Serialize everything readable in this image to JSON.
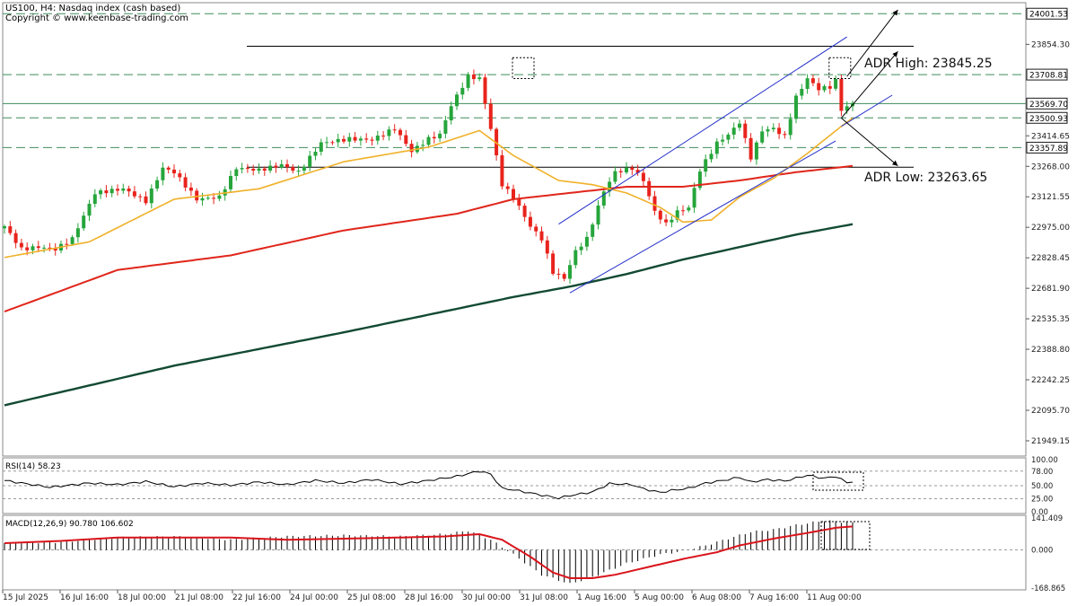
{
  "header": {
    "symbol_line": "US100, H4:  Nasdaq index (cash based)",
    "copyright": "Copyright © www.keenbase-trading.com"
  },
  "colors": {
    "bull": "#26a53b",
    "bear": "#e8231c",
    "ema20": "#f0b12a",
    "ema100": "#e0261b",
    "ema200": "#124a33",
    "channel": "#2431c9",
    "hline": "#3e8c5a",
    "axis_box": "#1a1a1a"
  },
  "price_axis": {
    "labels": [
      "23854.30",
      "23414.65",
      "23268.00",
      "23121.55",
      "22975.00",
      "22828.45",
      "22681.90",
      "22535.35",
      "22388.80",
      "22242.25",
      "22095.70",
      "21949.15"
    ],
    "boxed": [
      {
        "text": "24001.53",
        "value": 24001.53
      },
      {
        "text": "23708.81",
        "value": 23708.81
      },
      {
        "text": "23569.70",
        "value": 23569.7
      },
      {
        "text": "23500.93",
        "value": 23500.93
      },
      {
        "text": "23357.89",
        "value": 23357.89
      }
    ]
  },
  "annotations": {
    "adr_high": "ADR High: 23845.25",
    "adr_low": "ADR Low: 23263.65"
  },
  "time_axis": [
    "15 Jul 2025",
    "16 Jul 16:00",
    "18 Jul 00:00",
    "21 Jul 08:00",
    "22 Jul 16:00",
    "24 Jul 00:00",
    "25 Jul 08:00",
    "28 Jul 16:00",
    "30 Jul 00:00",
    "31 Jul 08:00",
    "1 Aug 16:00",
    "5 Aug 00:00",
    "6 Aug 08:00",
    "7 Aug 16:00",
    "11 Aug 00:00"
  ],
  "rsi": {
    "title": "RSI(14) 58.23",
    "axis": [
      "100.00",
      "78.00",
      "50.00",
      "25.00",
      "0.00"
    ]
  },
  "macd": {
    "title": "MACD(12,26,9) 90.780 106.602",
    "axis": [
      "141.409",
      "0.000",
      "-168.865"
    ]
  },
  "chart_data": {
    "type": "candlestick",
    "symbol": "US100",
    "timeframe": "H4",
    "y_range": [
      21880,
      24050
    ],
    "horizontal_levels": [
      24001.53,
      23845.25,
      23708.81,
      23569.7,
      23500.93,
      23357.89,
      23263.65
    ],
    "anchors": [
      {
        "i": 0,
        "p": 22980
      },
      {
        "i": 3,
        "p": 22870
      },
      {
        "i": 6,
        "p": 22880
      },
      {
        "i": 9,
        "p": 22870
      },
      {
        "i": 12,
        "p": 22920
      },
      {
        "i": 16,
        "p": 23140
      },
      {
        "i": 21,
        "p": 23160
      },
      {
        "i": 25,
        "p": 23100
      },
      {
        "i": 28,
        "p": 23260
      },
      {
        "i": 30,
        "p": 23240
      },
      {
        "i": 34,
        "p": 23110
      },
      {
        "i": 38,
        "p": 23120
      },
      {
        "i": 41,
        "p": 23260
      },
      {
        "i": 45,
        "p": 23250
      },
      {
        "i": 49,
        "p": 23275
      },
      {
        "i": 52,
        "p": 23240
      },
      {
        "i": 56,
        "p": 23380
      },
      {
        "i": 61,
        "p": 23400
      },
      {
        "i": 65,
        "p": 23395
      },
      {
        "i": 69,
        "p": 23450
      },
      {
        "i": 72,
        "p": 23340
      },
      {
        "i": 75,
        "p": 23400
      },
      {
        "i": 77,
        "p": 23420
      },
      {
        "i": 79,
        "p": 23560
      },
      {
        "i": 82,
        "p": 23700
      },
      {
        "i": 84,
        "p": 23690
      },
      {
        "i": 86,
        "p": 23450
      },
      {
        "i": 88,
        "p": 23180
      },
      {
        "i": 90,
        "p": 23120
      },
      {
        "i": 93,
        "p": 22980
      },
      {
        "i": 95,
        "p": 22920
      },
      {
        "i": 97,
        "p": 22760
      },
      {
        "i": 99,
        "p": 22730
      },
      {
        "i": 101,
        "p": 22860
      },
      {
        "i": 103,
        "p": 22920
      },
      {
        "i": 106,
        "p": 23150
      },
      {
        "i": 108,
        "p": 23240
      },
      {
        "i": 111,
        "p": 23260
      },
      {
        "i": 113,
        "p": 23200
      },
      {
        "i": 115,
        "p": 23050
      },
      {
        "i": 117,
        "p": 22990
      },
      {
        "i": 119,
        "p": 23050
      },
      {
        "i": 121,
        "p": 23070
      },
      {
        "i": 123,
        "p": 23250
      },
      {
        "i": 126,
        "p": 23380
      },
      {
        "i": 128,
        "p": 23420
      },
      {
        "i": 130,
        "p": 23480
      },
      {
        "i": 132,
        "p": 23310
      },
      {
        "i": 134,
        "p": 23440
      },
      {
        "i": 136,
        "p": 23450
      },
      {
        "i": 138,
        "p": 23410
      },
      {
        "i": 140,
        "p": 23600
      },
      {
        "i": 142,
        "p": 23690
      },
      {
        "i": 144,
        "p": 23640
      },
      {
        "i": 146,
        "p": 23650
      },
      {
        "i": 147,
        "p": 23680
      },
      {
        "i": 148,
        "p": 23540
      },
      {
        "i": 149,
        "p": 23555
      },
      {
        "i": 150,
        "p": 23570
      }
    ],
    "ema20": [
      [
        0,
        22830
      ],
      [
        15,
        22905
      ],
      [
        30,
        23110
      ],
      [
        45,
        23160
      ],
      [
        60,
        23290
      ],
      [
        75,
        23360
      ],
      [
        84,
        23440
      ],
      [
        90,
        23320
      ],
      [
        98,
        23200
      ],
      [
        104,
        23180
      ],
      [
        110,
        23140
      ],
      [
        116,
        23070
      ],
      [
        120,
        23000
      ],
      [
        125,
        23010
      ],
      [
        130,
        23120
      ],
      [
        136,
        23210
      ],
      [
        142,
        23330
      ],
      [
        148,
        23460
      ],
      [
        150,
        23500
      ]
    ],
    "ema100": [
      [
        0,
        22570
      ],
      [
        20,
        22770
      ],
      [
        40,
        22840
      ],
      [
        60,
        22960
      ],
      [
        80,
        23040
      ],
      [
        90,
        23110
      ],
      [
        100,
        23140
      ],
      [
        110,
        23170
      ],
      [
        120,
        23170
      ],
      [
        130,
        23200
      ],
      [
        140,
        23240
      ],
      [
        150,
        23270
      ]
    ],
    "ema200": [
      [
        0,
        22120
      ],
      [
        30,
        22310
      ],
      [
        60,
        22470
      ],
      [
        90,
        22640
      ],
      [
        100,
        22690
      ],
      [
        110,
        22750
      ],
      [
        120,
        22820
      ],
      [
        130,
        22880
      ],
      [
        140,
        22940
      ],
      [
        150,
        22990
      ]
    ],
    "channel": {
      "upper": [
        [
          98,
          22990
        ],
        [
          149,
          23890
        ]
      ],
      "lower": [
        [
          100,
          22660
        ],
        [
          147,
          23390
        ]
      ],
      "extension": [
        [
          148,
          23460
        ],
        [
          157,
          23610
        ]
      ]
    },
    "projections": [
      [
        [
          149,
          23700
        ],
        [
          158,
          24020
        ]
      ],
      [
        [
          148,
          23500
        ],
        [
          158,
          23820
        ]
      ],
      [
        [
          148,
          23500
        ],
        [
          158,
          23270
        ]
      ]
    ],
    "rsi": {
      "level_lines": [
        78,
        50,
        25
      ],
      "anchors": [
        [
          0,
          60
        ],
        [
          8,
          47
        ],
        [
          15,
          55
        ],
        [
          20,
          52
        ],
        [
          25,
          58
        ],
        [
          30,
          48
        ],
        [
          35,
          55
        ],
        [
          40,
          51
        ],
        [
          45,
          57
        ],
        [
          50,
          52
        ],
        [
          55,
          60
        ],
        [
          60,
          55
        ],
        [
          65,
          62
        ],
        [
          70,
          53
        ],
        [
          75,
          60
        ],
        [
          80,
          68
        ],
        [
          84,
          78
        ],
        [
          86,
          72
        ],
        [
          88,
          45
        ],
        [
          90,
          42
        ],
        [
          94,
          34
        ],
        [
          98,
          26
        ],
        [
          100,
          31
        ],
        [
          104,
          38
        ],
        [
          107,
          54
        ],
        [
          111,
          52
        ],
        [
          113,
          44
        ],
        [
          116,
          37
        ],
        [
          118,
          41
        ],
        [
          121,
          45
        ],
        [
          124,
          55
        ],
        [
          127,
          60
        ],
        [
          130,
          66
        ],
        [
          132,
          57
        ],
        [
          135,
          62
        ],
        [
          138,
          59
        ],
        [
          142,
          70
        ],
        [
          145,
          64
        ],
        [
          147,
          68
        ],
        [
          149,
          56
        ],
        [
          150,
          58
        ]
      ]
    },
    "macd": {
      "y_range": [
        -168.865,
        141.409
      ],
      "histogram_anchors": [
        [
          0,
          30
        ],
        [
          10,
          35
        ],
        [
          20,
          55
        ],
        [
          30,
          60
        ],
        [
          40,
          45
        ],
        [
          50,
          60
        ],
        [
          60,
          65
        ],
        [
          70,
          60
        ],
        [
          78,
          70
        ],
        [
          82,
          85
        ],
        [
          86,
          45
        ],
        [
          90,
          -20
        ],
        [
          95,
          -110
        ],
        [
          100,
          -150
        ],
        [
          104,
          -120
        ],
        [
          110,
          -60
        ],
        [
          116,
          -20
        ],
        [
          120,
          -5
        ],
        [
          124,
          20
        ],
        [
          128,
          50
        ],
        [
          132,
          80
        ],
        [
          136,
          90
        ],
        [
          140,
          110
        ],
        [
          145,
          130
        ],
        [
          150,
          120
        ]
      ],
      "signal_anchors": [
        [
          0,
          30
        ],
        [
          10,
          40
        ],
        [
          20,
          55
        ],
        [
          30,
          55
        ],
        [
          40,
          55
        ],
        [
          50,
          45
        ],
        [
          60,
          50
        ],
        [
          70,
          55
        ],
        [
          78,
          60
        ],
        [
          84,
          70
        ],
        [
          88,
          45
        ],
        [
          93,
          -30
        ],
        [
          97,
          -100
        ],
        [
          100,
          -125
        ],
        [
          104,
          -125
        ],
        [
          108,
          -110
        ],
        [
          114,
          -75
        ],
        [
          120,
          -40
        ],
        [
          126,
          -10
        ],
        [
          130,
          20
        ],
        [
          136,
          50
        ],
        [
          142,
          75
        ],
        [
          147,
          98
        ],
        [
          150,
          104
        ]
      ]
    }
  }
}
